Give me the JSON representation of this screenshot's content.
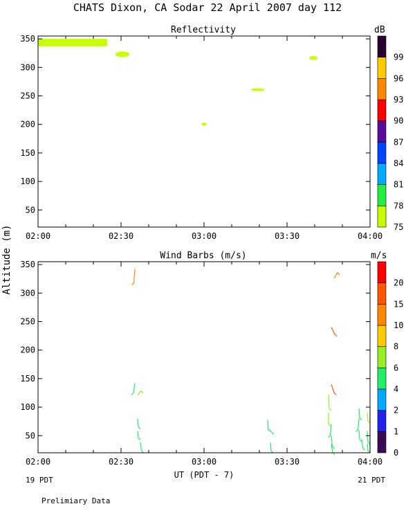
{
  "header": {
    "title": "CHATS Dixon, CA  Sodar  22 April 2007  day 112",
    "y_label": "Altitude (m)",
    "x_label": "UT  (PDT - 7)",
    "left_date": "19 PDT",
    "right_date": "21 PDT",
    "footer": "Prelimiary Data"
  },
  "chart_data": [
    {
      "type": "heatmap",
      "title": "Reflectivity",
      "colorbar_unit": "dB",
      "x_ticks": [
        "02:00",
        "02:30",
        "03:00",
        "03:30",
        "04:00"
      ],
      "x_range_minutes": [
        0,
        120
      ],
      "ylim": [
        20,
        355
      ],
      "y_ticks": [
        50,
        100,
        150,
        200,
        250,
        300,
        350
      ],
      "legend": [
        {
          "label": "75",
          "color": "#c8ff00"
        },
        {
          "label": "78",
          "color": "#22ee44"
        },
        {
          "label": "81",
          "color": "#00aaff"
        },
        {
          "label": "84",
          "color": "#0044ff"
        },
        {
          "label": "87",
          "color": "#5a0a9a"
        },
        {
          "label": "90",
          "color": "#ff0000"
        },
        {
          "label": "93",
          "color": "#ff8800"
        },
        {
          "label": "96",
          "color": "#ffcc00"
        },
        {
          "label": "99",
          "color": "#2a0030"
        }
      ],
      "blobs": [
        {
          "x_min": 0,
          "x_max": 25,
          "y_min": 337,
          "y_max": 350,
          "level": "75"
        },
        {
          "x_min": 28,
          "x_max": 33,
          "y_min": 318,
          "y_max": 328,
          "level": "75"
        },
        {
          "x_min": 59,
          "x_max": 61,
          "y_min": 198,
          "y_max": 203,
          "level": "75"
        },
        {
          "x_min": 77,
          "x_max": 82,
          "y_min": 259,
          "y_max": 263,
          "level": "75"
        },
        {
          "x_min": 98,
          "x_max": 101,
          "y_min": 313,
          "y_max": 320,
          "level": "75"
        }
      ]
    },
    {
      "type": "scatter",
      "title": "Wind Barbs (m/s)",
      "colorbar_unit": "m/s",
      "x_ticks": [
        "02:00",
        "02:30",
        "03:00",
        "03:30",
        "04:00"
      ],
      "x_range_minutes": [
        0,
        120
      ],
      "ylim": [
        20,
        355
      ],
      "y_ticks": [
        50,
        100,
        150,
        200,
        250,
        300,
        350
      ],
      "legend": [
        {
          "label": "0",
          "color": "#3a0a55"
        },
        {
          "label": "1",
          "color": "#2222ee"
        },
        {
          "label": "2",
          "color": "#00aaff"
        },
        {
          "label": "4",
          "color": "#22ee66"
        },
        {
          "label": "6",
          "color": "#99ee22"
        },
        {
          "label": "8",
          "color": "#ffcc00"
        },
        {
          "label": "10",
          "color": "#ff8800"
        },
        {
          "label": "15",
          "color": "#ff5500"
        },
        {
          "label": "20",
          "color": "#ff0000"
        }
      ],
      "barbs": [
        {
          "x": 35,
          "y": 342,
          "dx": -1.5,
          "dy": -20,
          "color": "#ff8800"
        },
        {
          "x": 35,
          "y": 142,
          "dx": -2,
          "dy": -14,
          "color": "#22ee66"
        },
        {
          "x": 36,
          "y": 121,
          "dx": 5,
          "dy": 6,
          "color": "#99ee22"
        },
        {
          "x": 36,
          "y": 80,
          "dx": 1,
          "dy": -12,
          "color": "#22ee66"
        },
        {
          "x": 36,
          "y": 58,
          "dx": 1,
          "dy": -10,
          "color": "#22ee66"
        },
        {
          "x": 37,
          "y": 38,
          "dx": 1.5,
          "dy": -12,
          "color": "#22ee66"
        },
        {
          "x": 83,
          "y": 78,
          "dx": 1,
          "dy": -14,
          "color": "#22ee66"
        },
        {
          "x": 83,
          "y": 62,
          "dx": 6,
          "dy": -5,
          "color": "#22ee66"
        },
        {
          "x": 84,
          "y": 38,
          "dx": 1,
          "dy": -12,
          "color": "#22ee66"
        },
        {
          "x": 107,
          "y": 326,
          "dx": 5,
          "dy": 8,
          "color": "#ff8800"
        },
        {
          "x": 106,
          "y": 240,
          "dx": 5,
          "dy": -10,
          "color": "#ff5500"
        },
        {
          "x": 106,
          "y": 140,
          "dx": 4,
          "dy": -12,
          "color": "#ff5500"
        },
        {
          "x": 105,
          "y": 122,
          "dx": 1,
          "dy": -20,
          "color": "#99ee22"
        },
        {
          "x": 105,
          "y": 90,
          "dx": 0,
          "dy": -16,
          "color": "#99ee22"
        },
        {
          "x": 106,
          "y": 70,
          "dx": -1.5,
          "dy": -16,
          "color": "#22ee66"
        },
        {
          "x": 106,
          "y": 50,
          "dx": 1.5,
          "dy": -16,
          "color": "#22ee66"
        },
        {
          "x": 106,
          "y": 35,
          "dx": 2,
          "dy": -12,
          "color": "#22ee66"
        },
        {
          "x": 116,
          "y": 98,
          "dx": 1,
          "dy": -14,
          "color": "#22ee66"
        },
        {
          "x": 116,
          "y": 80,
          "dx": -1.5,
          "dy": -16,
          "color": "#22ee66"
        },
        {
          "x": 116,
          "y": 60,
          "dx": 1,
          "dy": -14,
          "color": "#22ee66"
        },
        {
          "x": 117,
          "y": 43,
          "dx": 1.5,
          "dy": -12,
          "color": "#22ee66"
        },
        {
          "x": 119,
          "y": 90,
          "dx": 1,
          "dy": -12,
          "color": "#99ee22"
        },
        {
          "x": 119,
          "y": 58,
          "dx": 1,
          "dy": -16,
          "color": "#22ee66"
        },
        {
          "x": 119,
          "y": 36,
          "dx": 1,
          "dy": -10,
          "color": "#22ee66"
        }
      ]
    }
  ]
}
